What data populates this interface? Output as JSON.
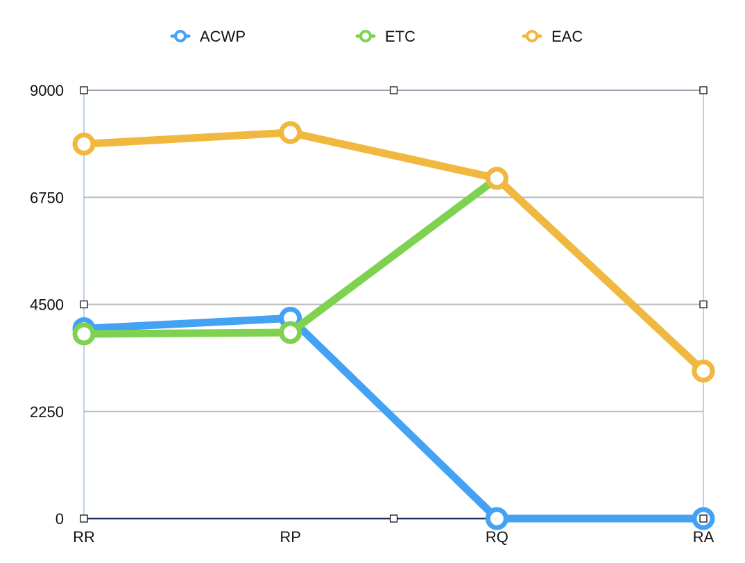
{
  "chart_data": {
    "type": "line",
    "categories": [
      "RR",
      "RP",
      "RQ",
      "RA"
    ],
    "ylim": [
      0,
      9000
    ],
    "y_ticks": [
      "0",
      "2250",
      "4500",
      "6750",
      "9000"
    ],
    "grid": true,
    "legend_position": "top",
    "series": [
      {
        "name": "ACWP",
        "color": "#44a2f4",
        "values": [
          3990,
          4210,
          0,
          0
        ]
      },
      {
        "name": "ETC",
        "color": "#7ed24f",
        "values": [
          3880,
          3910,
          7150,
          3100
        ]
      },
      {
        "name": "EAC",
        "color": "#f0b83e",
        "values": [
          7870,
          8110,
          7150,
          3100
        ]
      }
    ]
  }
}
